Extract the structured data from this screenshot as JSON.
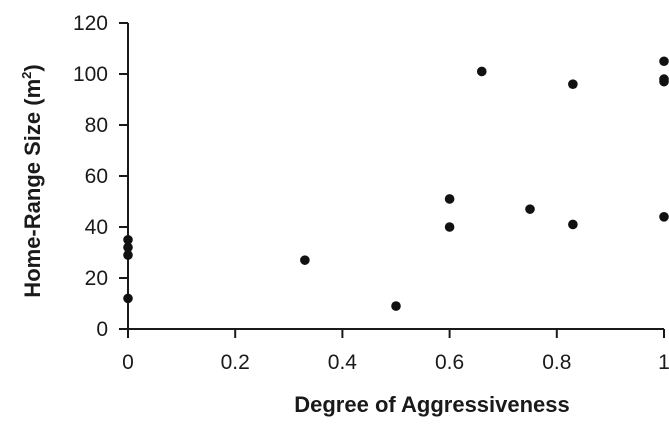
{
  "chart_data": {
    "type": "scatter",
    "title": "",
    "xlabel": "Degree of Aggressiveness",
    "ylabel_main": "Home-Range Size (m",
    "ylabel_sup": "2",
    "ylabel_close": ")",
    "xlim": [
      0,
      1
    ],
    "ylim": [
      0,
      120
    ],
    "xticks": [
      0,
      0.2,
      0.4,
      0.6,
      0.8,
      1
    ],
    "xtick_labels": [
      "0",
      "0.2",
      "0.4",
      "0.6",
      "0.8",
      "1"
    ],
    "yticks": [
      0,
      20,
      40,
      60,
      80,
      100,
      120
    ],
    "ytick_labels": [
      "0",
      "20",
      "40",
      "60",
      "80",
      "100",
      "120"
    ],
    "grid": false,
    "legend": "none",
    "points": [
      {
        "x": 0,
        "y": 12
      },
      {
        "x": 0,
        "y": 29
      },
      {
        "x": 0,
        "y": 32
      },
      {
        "x": 0,
        "y": 35
      },
      {
        "x": 0.33,
        "y": 27
      },
      {
        "x": 0.5,
        "y": 9
      },
      {
        "x": 0.6,
        "y": 40
      },
      {
        "x": 0.6,
        "y": 51
      },
      {
        "x": 0.66,
        "y": 101
      },
      {
        "x": 0.75,
        "y": 47
      },
      {
        "x": 0.83,
        "y": 41
      },
      {
        "x": 0.83,
        "y": 96
      },
      {
        "x": 1,
        "y": 44
      },
      {
        "x": 1,
        "y": 97
      },
      {
        "x": 1,
        "y": 98
      },
      {
        "x": 1,
        "y": 105
      }
    ],
    "marker_color": "#111111"
  }
}
